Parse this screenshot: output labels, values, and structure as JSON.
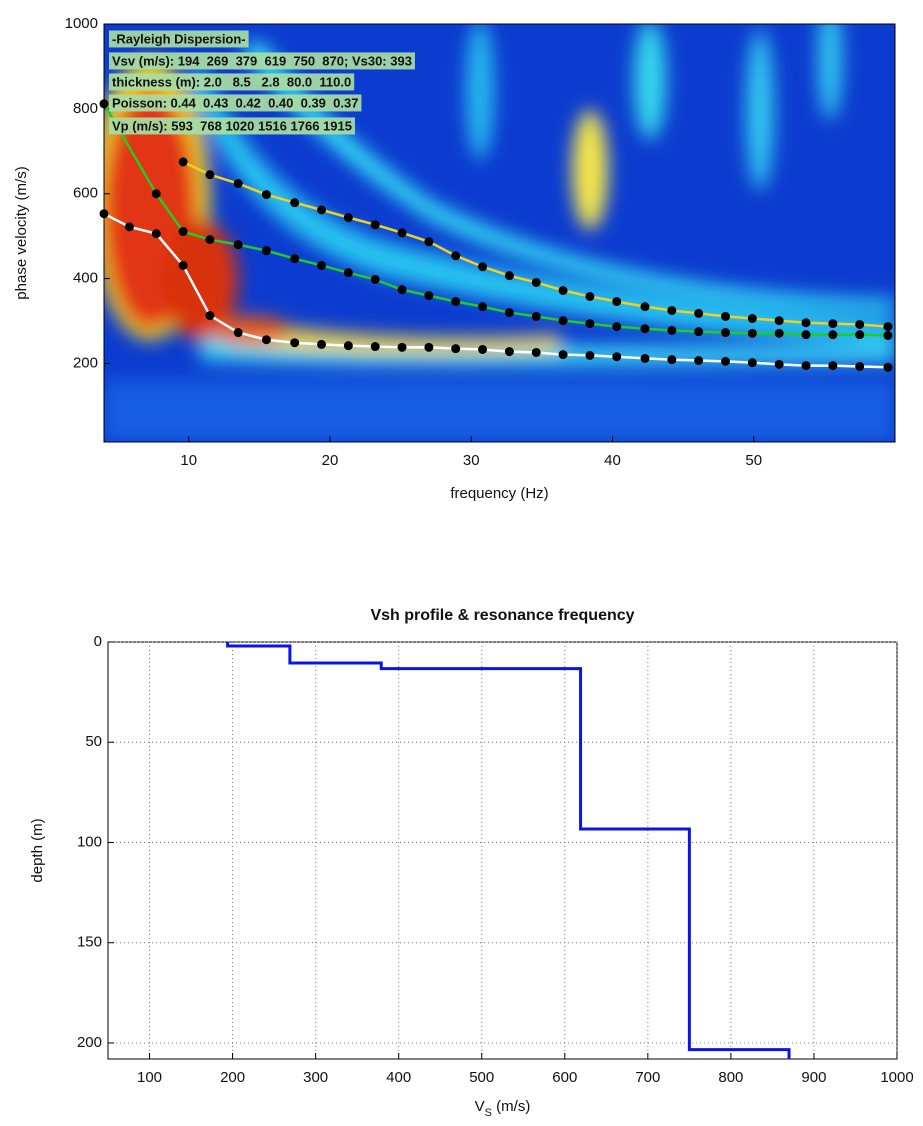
{
  "chart_data": [
    {
      "type": "dispersion",
      "xlabel": "frequency (Hz)",
      "ylabel": "phase velocity (m/s)",
      "xlim": [
        4,
        60
      ],
      "ylim": [
        15,
        1000
      ],
      "xticks": [
        10,
        20,
        30,
        40,
        50
      ],
      "yticks": [
        200,
        400,
        600,
        800,
        1000
      ],
      "grid": false,
      "annotations": [
        "-Rayleigh Dispersion-",
        "Vsv (m/s): 194  269  379  619  750  870; Vs30: 393",
        "thickness (m): 2.0   8.5   2.8  80.0  110.0",
        "Poisson: 0.44  0.43  0.42  0.40  0.39  0.37",
        "Vp (m/s): 593  768 1020 1516 1766 1915"
      ],
      "marker_color": "#000000",
      "series": [
        {
          "color": "#ffffff",
          "x": [
            4,
            5.8,
            7.7,
            9.6,
            11.5,
            13.5,
            15.5,
            17.5,
            19.4,
            21.3,
            23.2,
            25.1,
            27,
            28.9,
            30.8,
            32.7,
            34.6,
            36.5,
            38.4,
            40.3,
            42.3,
            44.2,
            46.1,
            48,
            49.9,
            51.8,
            53.7,
            55.6,
            57.5,
            59.5
          ],
          "values": [
            553,
            522,
            506,
            431,
            313,
            273,
            256,
            249,
            245,
            242,
            240,
            238,
            238,
            235,
            233,
            228,
            226,
            221,
            219,
            216,
            212,
            209,
            207,
            205,
            202,
            198,
            195,
            195,
            193,
            191
          ]
        },
        {
          "color": "#22cc22",
          "x": [
            4,
            7.7,
            9.6,
            11.5,
            13.5,
            15.5,
            17.5,
            19.4,
            21.3,
            23.2,
            25.1,
            27,
            28.9,
            30.8,
            32.7,
            34.6,
            36.5,
            38.4,
            40.3,
            42.3,
            44.2,
            46.1,
            48,
            49.9,
            51.8,
            53.7,
            55.6,
            57.5,
            59.5
          ],
          "values": [
            812,
            600,
            511,
            492,
            480,
            466,
            447,
            431,
            414,
            398,
            374,
            360,
            346,
            334,
            320,
            311,
            301,
            294,
            287,
            282,
            278,
            275,
            273,
            271,
            271,
            268,
            268,
            268,
            266
          ]
        },
        {
          "color": "#f0d020",
          "x": [
            9.6,
            11.5,
            13.5,
            15.5,
            17.5,
            19.4,
            21.3,
            23.2,
            25.1,
            27,
            28.9,
            30.8,
            32.7,
            34.6,
            36.5,
            38.4,
            40.3,
            42.3,
            44.2,
            46.1,
            48,
            49.9,
            51.8,
            53.7,
            55.6,
            57.5,
            59.5
          ],
          "values": [
            675,
            645,
            624,
            598,
            579,
            562,
            544,
            527,
            508,
            487,
            454,
            428,
            407,
            391,
            372,
            358,
            346,
            334,
            325,
            318,
            311,
            306,
            301,
            296,
            294,
            292,
            287
          ]
        }
      ]
    },
    {
      "type": "profile",
      "title": "Vsh profile & resonance frequency",
      "xlabel": [
        "V",
        "S",
        " (m/s)"
      ],
      "ylabel": "depth (m)",
      "xlim": [
        50,
        1000
      ],
      "ylim": [
        0,
        208
      ],
      "y_inverted": true,
      "xticks": [
        100,
        200,
        300,
        400,
        500,
        600,
        700,
        800,
        900,
        1000
      ],
      "yticks": [
        0,
        50,
        100,
        150,
        200
      ],
      "grid": true,
      "series": [
        {
          "color": "#0a14e6",
          "x": [
            194,
            194,
            269,
            269,
            379,
            379,
            619,
            619,
            750,
            750,
            870,
            870
          ],
          "values": [
            0,
            2,
            2,
            10.5,
            10.5,
            13.3,
            13.3,
            93.3,
            93.3,
            203.3,
            203.3,
            208
          ]
        }
      ]
    }
  ]
}
